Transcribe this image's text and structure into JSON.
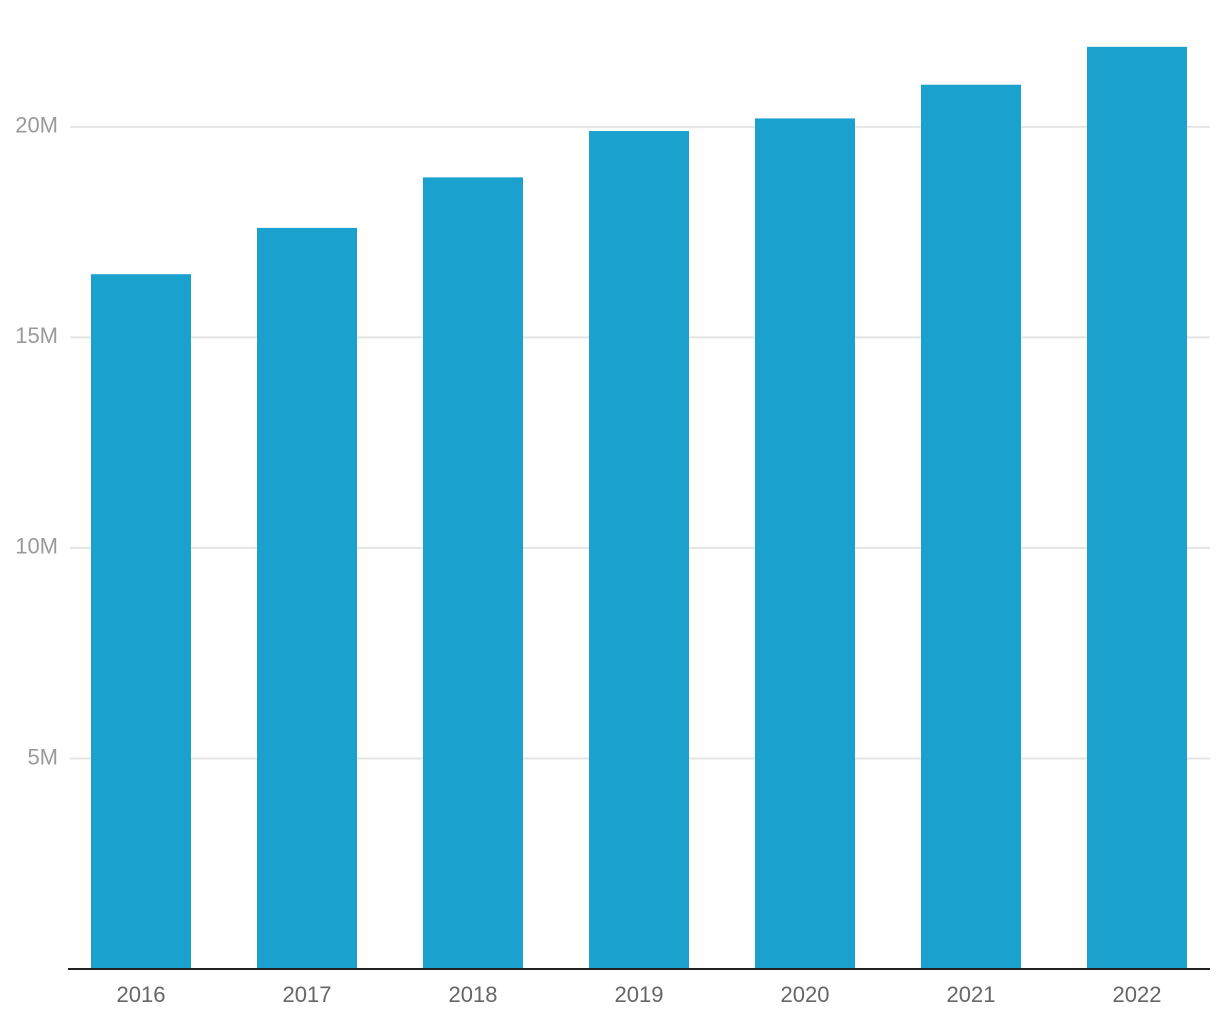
{
  "chart_data": {
    "type": "bar",
    "categories": [
      "2016",
      "2017",
      "2018",
      "2019",
      "2020",
      "2021",
      "2022"
    ],
    "values": [
      16500000,
      17600000,
      18800000,
      19900000,
      20200000,
      21000000,
      21900000
    ],
    "color": "#1aa1cd",
    "ylim": [
      0,
      23000000
    ],
    "yticks": [
      {
        "value": 5000000,
        "label": "5M"
      },
      {
        "value": 10000000,
        "label": "10M"
      },
      {
        "value": 15000000,
        "label": "15M"
      },
      {
        "value": 20000000,
        "label": "20M"
      }
    ],
    "grid": true
  }
}
